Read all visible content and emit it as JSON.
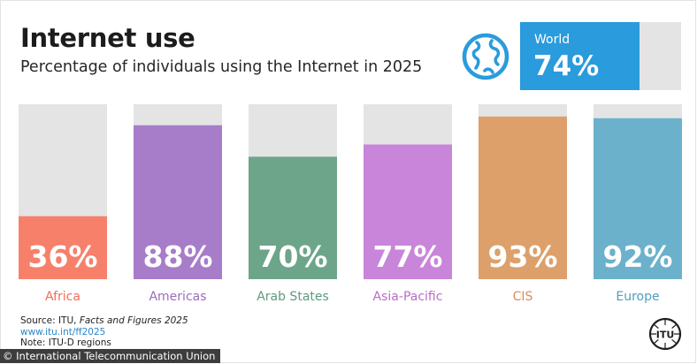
{
  "title": "Internet use",
  "subtitle": "Percentage of individuals using the Internet in 2025",
  "world": {
    "label": "World",
    "value": 74,
    "display": "74%",
    "color": "#2a9bdc",
    "track_color": "#e4e4e4"
  },
  "icons": {
    "globe": "globe-icon",
    "itu_logo": "itu-logo-icon"
  },
  "chart_data": {
    "type": "bar",
    "title": "Internet use",
    "subtitle": "Percentage of individuals using the Internet in 2025",
    "xlabel": "",
    "ylabel": "",
    "ylim": [
      0,
      100
    ],
    "categories": [
      "Africa",
      "Americas",
      "Arab States",
      "Asia-Pacific",
      "CIS",
      "Europe"
    ],
    "values": [
      36,
      88,
      70,
      77,
      93,
      92
    ],
    "value_labels": [
      "36%",
      "88%",
      "70%",
      "77%",
      "93%",
      "92%"
    ],
    "colors": [
      "#f7806b",
      "#a77cc9",
      "#6da58a",
      "#c985d9",
      "#dda06b",
      "#6bb1cc"
    ],
    "label_colors": [
      "#ef6e5b",
      "#9b6cc0",
      "#5c9a7e",
      "#b96ccd",
      "#d98d56",
      "#4f9fc0"
    ],
    "track_color": "#e4e4e4",
    "grid": false,
    "legend": "none"
  },
  "footer": {
    "source_prefix": "Source: ITU, ",
    "source_title": "Facts and Figures 2025",
    "link": "www.itu.int/ff2025",
    "note": "Note: ITU-D regions"
  },
  "credit": "© International Telecommunication Union",
  "logo_text": "ITU"
}
